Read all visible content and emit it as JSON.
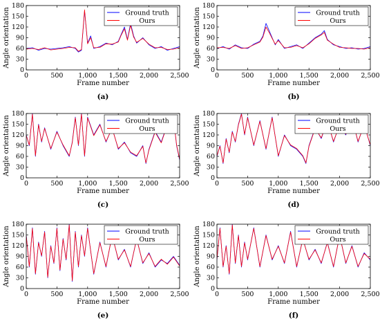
{
  "chart_data": [
    {
      "type": "line",
      "panel_label": "(a)",
      "xlabel": "Frame number",
      "ylabel": "Angle orientation",
      "xlim": [
        0,
        2500
      ],
      "ylim": [
        0,
        180
      ],
      "xticks": [
        0,
        500,
        1000,
        1500,
        2000,
        2500
      ],
      "xtick_labels": [
        "0",
        "500",
        "1,000",
        "1,500",
        "2,000",
        "2,500"
      ],
      "yticks": [
        0,
        30,
        60,
        90,
        120,
        150,
        180
      ],
      "legend": "top-right",
      "series": [
        {
          "name": "Ground truth",
          "color": "#0000ff",
          "x": [
            0,
            100,
            200,
            300,
            400,
            500,
            600,
            700,
            800,
            850,
            900,
            950,
            1000,
            1050,
            1100,
            1200,
            1300,
            1400,
            1500,
            1550,
            1600,
            1650,
            1700,
            1750,
            1800,
            1900,
            2000,
            2100,
            2200,
            2300,
            2400,
            2500
          ],
          "y": [
            60,
            62,
            55,
            60,
            58,
            60,
            62,
            65,
            60,
            50,
            55,
            165,
            75,
            95,
            60,
            65,
            75,
            70,
            80,
            100,
            120,
            85,
            130,
            95,
            75,
            90,
            70,
            60,
            65,
            55,
            60,
            65
          ]
        },
        {
          "name": "Ours",
          "color": "#ff0000",
          "x": [
            0,
            100,
            200,
            300,
            400,
            500,
            600,
            700,
            800,
            850,
            900,
            950,
            1000,
            1050,
            1100,
            1200,
            1300,
            1400,
            1500,
            1550,
            1600,
            1650,
            1700,
            1750,
            1800,
            1900,
            2000,
            2100,
            2200,
            2300,
            2400,
            2500
          ],
          "y": [
            58,
            60,
            57,
            62,
            56,
            58,
            60,
            63,
            62,
            52,
            57,
            168,
            73,
            90,
            62,
            63,
            73,
            72,
            78,
            98,
            115,
            83,
            125,
            92,
            77,
            88,
            72,
            62,
            63,
            57,
            58,
            62
          ]
        }
      ]
    },
    {
      "type": "line",
      "panel_label": "(b)",
      "xlabel": "Frame number",
      "ylabel": "Angle orientation",
      "xlim": [
        0,
        2500
      ],
      "ylim": [
        0,
        180
      ],
      "xticks": [
        0,
        500,
        1000,
        1500,
        2000,
        2500
      ],
      "xtick_labels": [
        "0",
        "500",
        "1,000",
        "1,500",
        "2,000",
        "2,500"
      ],
      "yticks": [
        0,
        30,
        60,
        90,
        120,
        150,
        180
      ],
      "legend": "top-right",
      "series": [
        {
          "name": "Ground truth",
          "color": "#0000ff",
          "x": [
            0,
            100,
            200,
            300,
            400,
            500,
            600,
            700,
            750,
            800,
            850,
            900,
            950,
            1000,
            1100,
            1200,
            1300,
            1400,
            1500,
            1600,
            1700,
            1750,
            1800,
            1900,
            2000,
            2100,
            2200,
            2300,
            2400,
            2500
          ],
          "y": [
            60,
            65,
            58,
            70,
            62,
            60,
            72,
            80,
            95,
            130,
            110,
            90,
            70,
            85,
            60,
            65,
            70,
            60,
            75,
            90,
            100,
            110,
            85,
            70,
            65,
            60,
            62,
            58,
            60,
            65
          ]
        },
        {
          "name": "Ours",
          "color": "#ff0000",
          "x": [
            0,
            100,
            200,
            300,
            400,
            500,
            600,
            700,
            750,
            800,
            850,
            900,
            950,
            1000,
            1100,
            1200,
            1300,
            1400,
            1500,
            1600,
            1700,
            1750,
            1800,
            1900,
            2000,
            2100,
            2200,
            2300,
            2400,
            2500
          ],
          "y": [
            62,
            63,
            60,
            68,
            60,
            62,
            70,
            78,
            92,
            120,
            105,
            88,
            72,
            82,
            62,
            63,
            68,
            62,
            73,
            88,
            98,
            105,
            83,
            72,
            63,
            62,
            60,
            60,
            58,
            62
          ]
        }
      ]
    },
    {
      "type": "line",
      "panel_label": "(c)",
      "xlabel": "Frame number",
      "ylabel": "Angle orientation",
      "xlim": [
        0,
        2500
      ],
      "ylim": [
        0,
        180
      ],
      "xticks": [
        0,
        500,
        1000,
        1500,
        2000,
        2500
      ],
      "xtick_labels": [
        "0",
        "500",
        "1,000",
        "1,500",
        "2,000",
        "2,500"
      ],
      "yticks": [
        0,
        30,
        60,
        90,
        120,
        150,
        180
      ],
      "legend": "top-right",
      "series": [
        {
          "name": "Ground truth",
          "color": "#0000ff",
          "x": [
            0,
            50,
            100,
            150,
            200,
            250,
            300,
            400,
            500,
            600,
            700,
            750,
            800,
            850,
            900,
            950,
            1000,
            1100,
            1200,
            1300,
            1400,
            1500,
            1600,
            1700,
            1800,
            1900,
            1950,
            2000,
            2100,
            2200,
            2300,
            2400,
            2450,
            2500
          ],
          "y": [
            120,
            90,
            180,
            60,
            150,
            100,
            140,
            80,
            130,
            90,
            60,
            100,
            170,
            90,
            180,
            60,
            170,
            120,
            150,
            100,
            140,
            80,
            100,
            70,
            60,
            90,
            40,
            80,
            130,
            100,
            150,
            170,
            90,
            50
          ]
        },
        {
          "name": "Ours",
          "color": "#ff0000",
          "x": [
            0,
            50,
            100,
            150,
            200,
            250,
            300,
            400,
            500,
            600,
            700,
            750,
            800,
            850,
            900,
            950,
            1000,
            1100,
            1200,
            1300,
            1400,
            1500,
            1600,
            1700,
            1800,
            1900,
            1950,
            2000,
            2100,
            2200,
            2300,
            2400,
            2450,
            2500
          ],
          "y": [
            118,
            92,
            178,
            62,
            148,
            102,
            138,
            82,
            128,
            92,
            62,
            98,
            168,
            92,
            178,
            62,
            168,
            118,
            148,
            102,
            138,
            82,
            98,
            72,
            62,
            88,
            42,
            78,
            128,
            98,
            148,
            168,
            92,
            52
          ]
        }
      ]
    },
    {
      "type": "line",
      "panel_label": "(d)",
      "xlabel": "Frame number",
      "ylabel": "Angle orientation",
      "xlim": [
        0,
        2500
      ],
      "ylim": [
        0,
        180
      ],
      "xticks": [
        0,
        500,
        1000,
        1500,
        2000,
        2500
      ],
      "xtick_labels": [
        "0",
        "500",
        "1,000",
        "1,500",
        "2,000",
        "2,500"
      ],
      "yticks": [
        0,
        30,
        60,
        90,
        120,
        150,
        180
      ],
      "legend": "top-right",
      "series": [
        {
          "name": "Ground truth",
          "color": "#0000ff",
          "x": [
            0,
            50,
            100,
            150,
            200,
            250,
            300,
            350,
            400,
            450,
            500,
            600,
            700,
            800,
            900,
            1000,
            1100,
            1200,
            1300,
            1400,
            1450,
            1500,
            1600,
            1700,
            1800,
            1900,
            2000,
            2100,
            2200,
            2300,
            2400,
            2500
          ],
          "y": [
            60,
            90,
            40,
            110,
            70,
            130,
            100,
            150,
            180,
            120,
            170,
            90,
            160,
            80,
            170,
            60,
            120,
            90,
            80,
            60,
            40,
            90,
            140,
            110,
            160,
            100,
            150,
            120,
            170,
            100,
            150,
            90
          ]
        },
        {
          "name": "Ours",
          "color": "#ff0000",
          "x": [
            0,
            50,
            100,
            150,
            200,
            250,
            300,
            350,
            400,
            450,
            500,
            600,
            700,
            800,
            900,
            1000,
            1100,
            1200,
            1300,
            1400,
            1450,
            1500,
            1600,
            1700,
            1800,
            1900,
            2000,
            2100,
            2200,
            2300,
            2400,
            2500
          ],
          "y": [
            62,
            88,
            42,
            108,
            72,
            128,
            102,
            148,
            178,
            122,
            168,
            92,
            158,
            82,
            168,
            62,
            118,
            92,
            82,
            62,
            42,
            88,
            138,
            112,
            158,
            102,
            148,
            122,
            168,
            102,
            148,
            92
          ]
        }
      ]
    },
    {
      "type": "line",
      "panel_label": "(e)",
      "xlabel": "Frame number",
      "ylabel": "Angle orientation",
      "xlim": [
        0,
        2500
      ],
      "ylim": [
        0,
        180
      ],
      "xticks": [
        0,
        500,
        1000,
        1500,
        2000,
        2500
      ],
      "xtick_labels": [
        "0",
        "500",
        "1,000",
        "1,500",
        "2,000",
        "2,500"
      ],
      "yticks": [
        0,
        30,
        60,
        90,
        120,
        150,
        180
      ],
      "legend": "top-right",
      "series": [
        {
          "name": "Ground truth",
          "color": "#0000ff",
          "x": [
            0,
            50,
            100,
            150,
            200,
            250,
            300,
            350,
            400,
            450,
            500,
            550,
            600,
            650,
            700,
            750,
            800,
            850,
            900,
            950,
            1000,
            1100,
            1200,
            1300,
            1400,
            1500,
            1600,
            1700,
            1800,
            1900,
            2000,
            2100,
            2200,
            2300,
            2400,
            2500
          ],
          "y": [
            150,
            60,
            170,
            40,
            130,
            90,
            160,
            30,
            120,
            70,
            170,
            50,
            140,
            80,
            180,
            20,
            160,
            60,
            150,
            90,
            170,
            40,
            130,
            60,
            150,
            80,
            110,
            60,
            140,
            70,
            100,
            60,
            80,
            70,
            90,
            65
          ]
        },
        {
          "name": "Ours",
          "color": "#ff0000",
          "x": [
            0,
            50,
            100,
            150,
            200,
            250,
            300,
            350,
            400,
            450,
            500,
            550,
            600,
            650,
            700,
            750,
            800,
            850,
            900,
            950,
            1000,
            1100,
            1200,
            1300,
            1400,
            1500,
            1600,
            1700,
            1800,
            1900,
            2000,
            2100,
            2200,
            2300,
            2400,
            2500
          ],
          "y": [
            148,
            62,
            168,
            42,
            128,
            92,
            158,
            32,
            118,
            72,
            168,
            52,
            138,
            82,
            178,
            22,
            158,
            62,
            148,
            92,
            168,
            42,
            128,
            62,
            148,
            82,
            108,
            62,
            138,
            72,
            98,
            62,
            82,
            68,
            88,
            63
          ]
        }
      ]
    },
    {
      "type": "line",
      "panel_label": "(f)",
      "xlabel": "Frame number",
      "ylabel": "Angle orientation",
      "xlim": [
        0,
        2500
      ],
      "ylim": [
        0,
        180
      ],
      "xticks": [
        0,
        500,
        1000,
        1500,
        2000,
        2500
      ],
      "xtick_labels": [
        "0",
        "500",
        "1,000",
        "1,500",
        "2,000",
        "2,500"
      ],
      "yticks": [
        0,
        30,
        60,
        90,
        120,
        150,
        180
      ],
      "legend": "top-right",
      "series": [
        {
          "name": "Ground truth",
          "color": "#0000ff",
          "x": [
            0,
            50,
            100,
            150,
            200,
            250,
            300,
            350,
            400,
            450,
            500,
            600,
            700,
            800,
            900,
            1000,
            1100,
            1200,
            1300,
            1400,
            1500,
            1600,
            1700,
            1800,
            1900,
            2000,
            2100,
            2200,
            2300,
            2400,
            2500
          ],
          "y": [
            80,
            170,
            60,
            120,
            40,
            180,
            70,
            150,
            60,
            130,
            80,
            170,
            60,
            150,
            80,
            120,
            70,
            160,
            60,
            140,
            80,
            110,
            70,
            130,
            60,
            150,
            70,
            120,
            60,
            100,
            80
          ]
        },
        {
          "name": "Ours",
          "color": "#ff0000",
          "x": [
            0,
            50,
            100,
            150,
            200,
            250,
            300,
            350,
            400,
            450,
            500,
            600,
            700,
            800,
            900,
            1000,
            1100,
            1200,
            1300,
            1400,
            1500,
            1600,
            1700,
            1800,
            1900,
            2000,
            2100,
            2200,
            2300,
            2400,
            2500
          ],
          "y": [
            82,
            168,
            62,
            118,
            42,
            178,
            72,
            148,
            62,
            128,
            82,
            168,
            62,
            148,
            82,
            118,
            72,
            158,
            62,
            138,
            82,
            108,
            72,
            128,
            62,
            148,
            72,
            118,
            62,
            98,
            82
          ]
        }
      ]
    }
  ]
}
